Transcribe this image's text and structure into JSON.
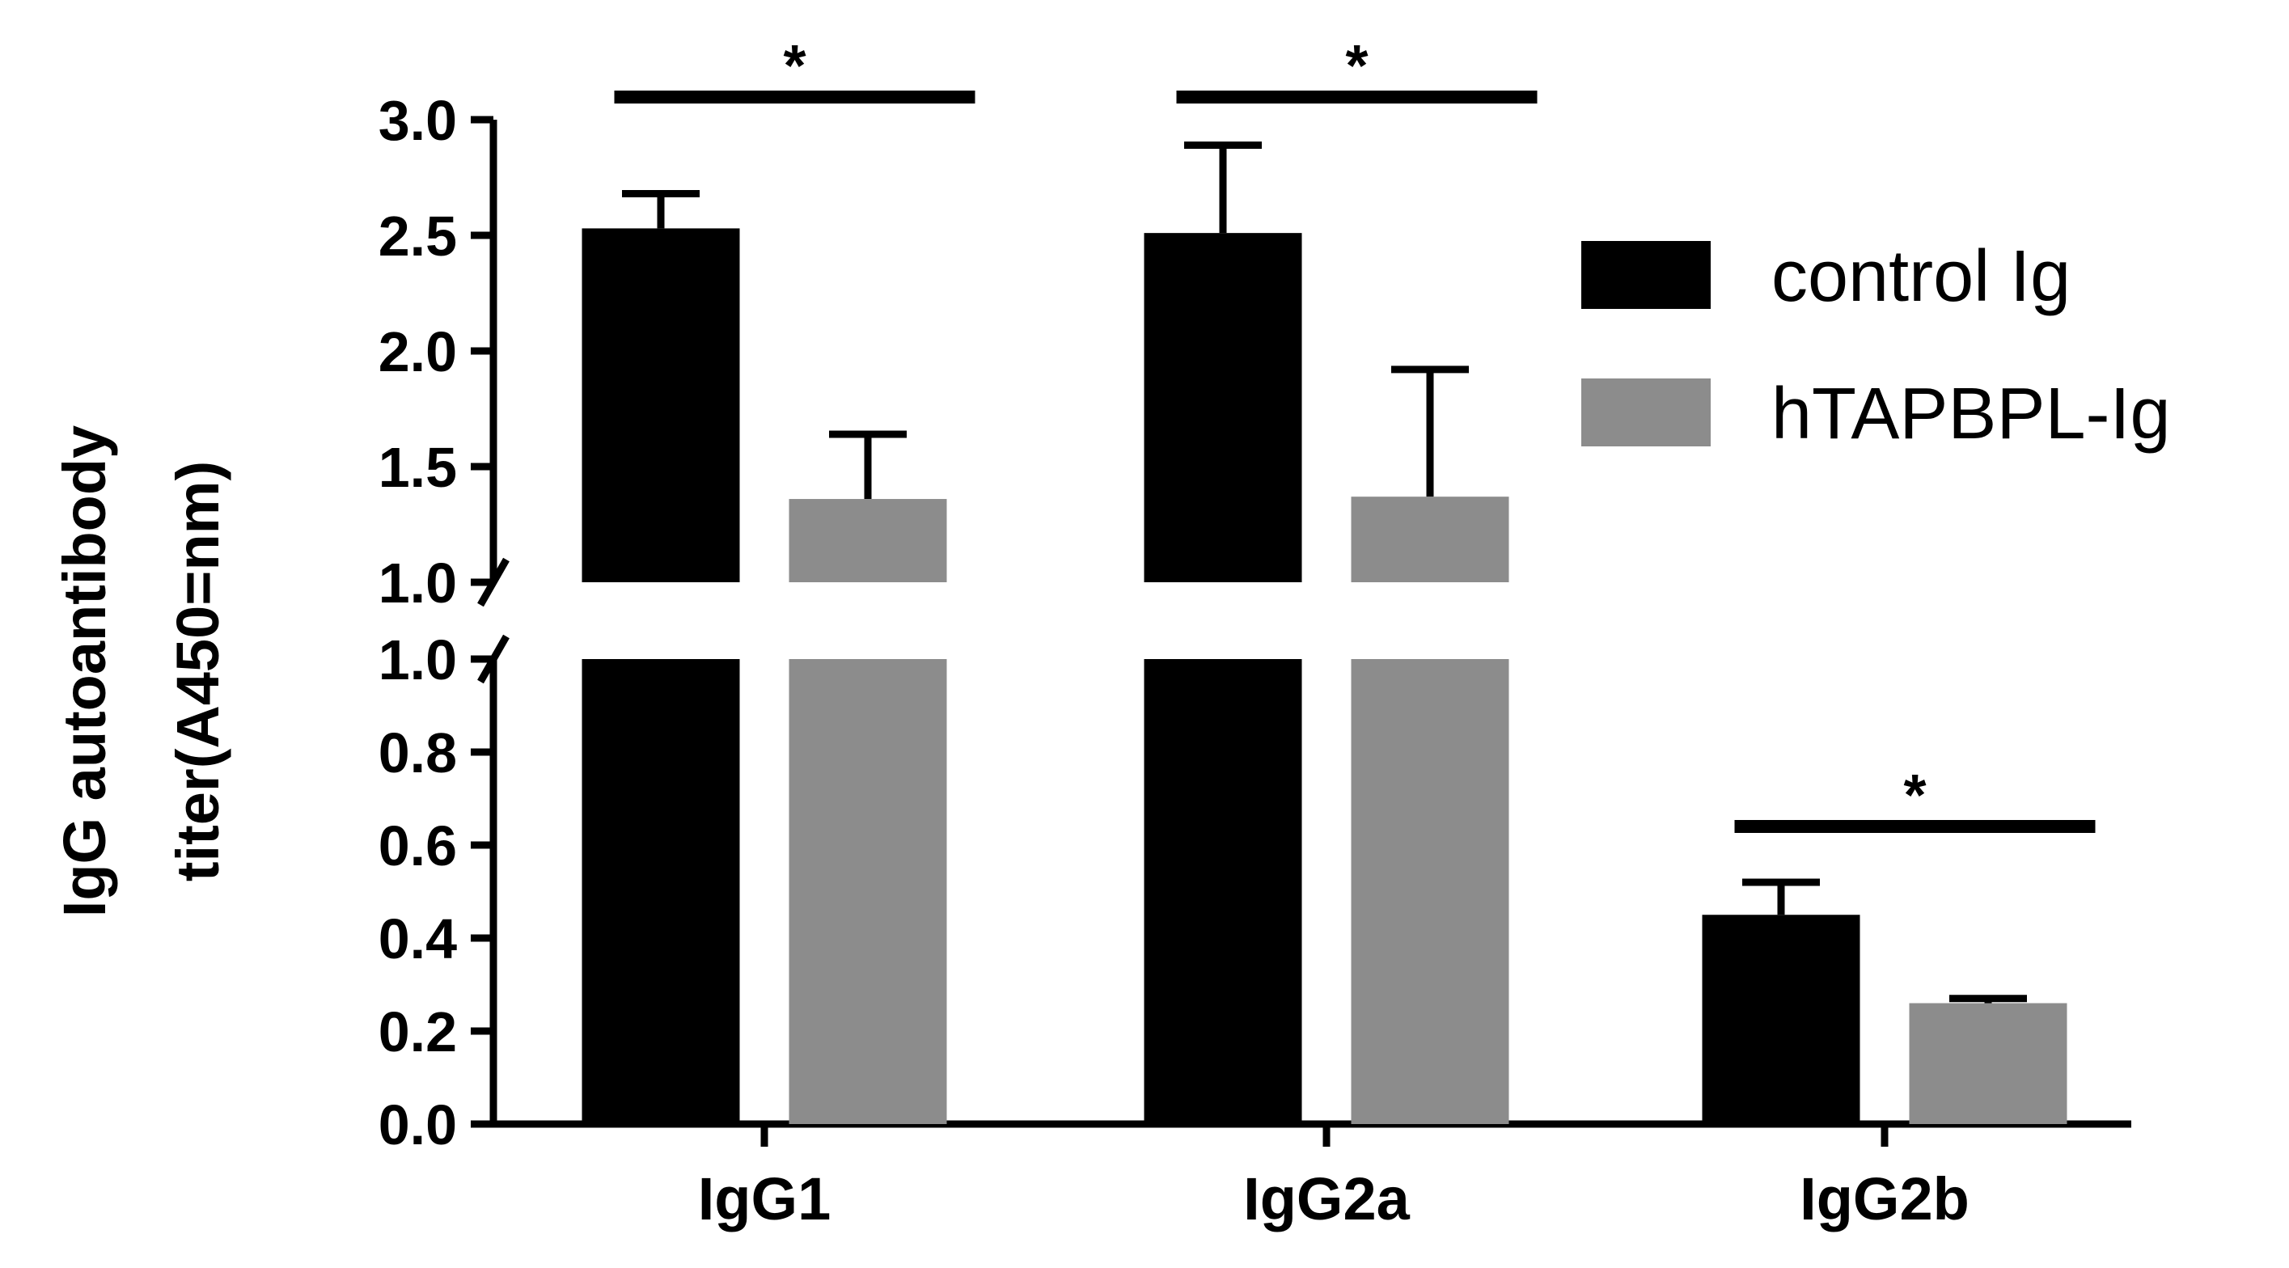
{
  "chart_data": {
    "type": "bar",
    "title": "",
    "xlabel": "",
    "ylabel_lines": [
      "IgG autoantibody",
      "titer(A450=nm)"
    ],
    "categories": [
      "IgG1",
      "IgG2a",
      "IgG2b"
    ],
    "series": [
      {
        "name": "control Ig",
        "color": "#000000",
        "values": [
          2.53,
          2.51,
          0.45
        ],
        "errors": [
          0.15,
          0.38,
          0.07
        ]
      },
      {
        "name": "hTAPBPL-Ig",
        "color": "#8c8c8c",
        "values": [
          1.36,
          1.37,
          0.26
        ],
        "errors": [
          0.28,
          0.55,
          0.01
        ]
      }
    ],
    "axis": {
      "broken": true,
      "lower_range": [
        0,
        1.0
      ],
      "upper_range": [
        1.0,
        3.0
      ],
      "lower_ticks": [
        "0.0",
        "0.2",
        "0.4",
        "0.6",
        "0.8",
        "1.0"
      ],
      "upper_ticks": [
        "1.0",
        "1.5",
        "2.0",
        "2.5",
        "3.0"
      ]
    },
    "significance": [
      {
        "category": "IgG1",
        "label": "*"
      },
      {
        "category": "IgG2a",
        "label": "*"
      },
      {
        "category": "IgG2b",
        "label": "*"
      }
    ],
    "legend_position": "right",
    "grid": false
  }
}
